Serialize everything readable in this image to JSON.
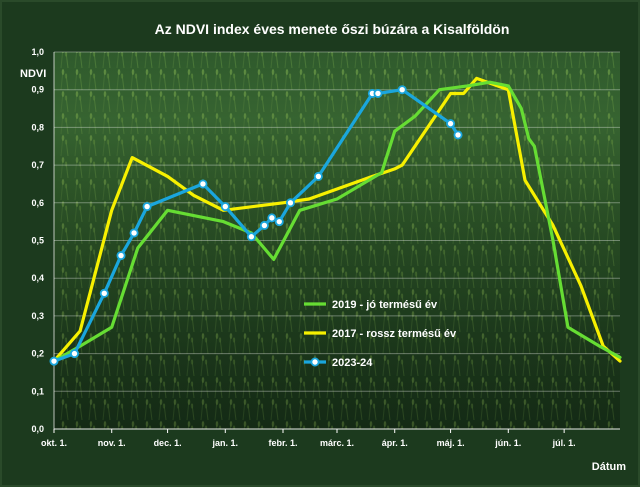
{
  "chart_data": {
    "type": "line",
    "title": "Az NDVI index éves menete őszi búzára a Kisalföldön",
    "xlabel": "Dátum",
    "ylabel": "NDVI",
    "ylim": [
      0,
      1
    ],
    "yticks": [
      "0,0",
      "0,1",
      "0,2",
      "0,3",
      "0,4",
      "0,5",
      "0,6",
      "0,7",
      "0,8",
      "0,9",
      "1,0"
    ],
    "xlim": [
      "2023-10-01",
      "2024-07-31"
    ],
    "xticks": [
      {
        "date": "2023-10-01",
        "label": "okt. 1."
      },
      {
        "date": "2023-11-01",
        "label": "nov. 1."
      },
      {
        "date": "2023-12-01",
        "label": "dec. 1."
      },
      {
        "date": "2024-01-01",
        "label": "jan. 1."
      },
      {
        "date": "2024-02-01",
        "label": "febr. 1."
      },
      {
        "date": "2024-03-01",
        "label": "márc. 1."
      },
      {
        "date": "2024-04-01",
        "label": "ápr. 1."
      },
      {
        "date": "2024-05-01",
        "label": "máj. 1."
      },
      {
        "date": "2024-06-01",
        "label": "jún. 1."
      },
      {
        "date": "2024-07-01",
        "label": "júl. 1."
      }
    ],
    "grid": "horizontal",
    "legend_position": "center-right",
    "series": [
      {
        "name": "2019 - jó termésű év",
        "color": "#66dd33",
        "marker": "none",
        "points": [
          [
            "2023-10-01",
            0.18
          ],
          [
            "2023-10-15",
            0.22
          ],
          [
            "2023-11-01",
            0.27
          ],
          [
            "2023-11-15",
            0.48
          ],
          [
            "2023-12-01",
            0.58
          ],
          [
            "2023-12-31",
            0.55
          ],
          [
            "2024-01-15",
            0.52
          ],
          [
            "2024-01-27",
            0.45
          ],
          [
            "2024-02-10",
            0.58
          ],
          [
            "2024-03-01",
            0.61
          ],
          [
            "2024-03-25",
            0.68
          ],
          [
            "2024-04-01",
            0.79
          ],
          [
            "2024-04-12",
            0.83
          ],
          [
            "2024-04-25",
            0.9
          ],
          [
            "2024-05-10",
            0.91
          ],
          [
            "2024-05-22",
            0.92
          ],
          [
            "2024-06-01",
            0.91
          ],
          [
            "2024-06-08",
            0.85
          ],
          [
            "2024-06-12",
            0.77
          ],
          [
            "2024-06-15",
            0.75
          ],
          [
            "2024-06-25",
            0.5
          ],
          [
            "2024-07-03",
            0.27
          ],
          [
            "2024-07-20",
            0.22
          ],
          [
            "2024-07-31",
            0.19
          ]
        ]
      },
      {
        "name": "2017 - rossz termésű év",
        "color": "#f7f000",
        "marker": "none",
        "points": [
          [
            "2023-10-01",
            0.18
          ],
          [
            "2023-10-15",
            0.26
          ],
          [
            "2023-11-01",
            0.58
          ],
          [
            "2023-11-12",
            0.72
          ],
          [
            "2023-12-01",
            0.67
          ],
          [
            "2023-12-15",
            0.62
          ],
          [
            "2023-12-31",
            0.58
          ],
          [
            "2024-02-01",
            0.6
          ],
          [
            "2024-02-15",
            0.61
          ],
          [
            "2024-03-20",
            0.67
          ],
          [
            "2024-04-01",
            0.69
          ],
          [
            "2024-04-05",
            0.7
          ],
          [
            "2024-05-01",
            0.89
          ],
          [
            "2024-05-08",
            0.89
          ],
          [
            "2024-05-15",
            0.93
          ],
          [
            "2024-06-01",
            0.9
          ],
          [
            "2024-06-10",
            0.66
          ],
          [
            "2024-06-25",
            0.54
          ],
          [
            "2024-07-10",
            0.38
          ],
          [
            "2024-07-22",
            0.22
          ],
          [
            "2024-07-31",
            0.18
          ]
        ]
      },
      {
        "name": "2023-24",
        "color": "#1aa6dd",
        "marker": "circle",
        "points": [
          [
            "2023-10-01",
            0.18
          ],
          [
            "2023-10-12",
            0.2
          ],
          [
            "2023-10-28",
            0.36
          ],
          [
            "2023-11-06",
            0.46
          ],
          [
            "2023-11-13",
            0.52
          ],
          [
            "2023-11-20",
            0.59
          ],
          [
            "2023-12-20",
            0.65
          ],
          [
            "2024-01-01",
            0.59
          ],
          [
            "2024-01-15",
            0.51
          ],
          [
            "2024-01-22",
            0.54
          ],
          [
            "2024-01-26",
            0.56
          ],
          [
            "2024-01-30",
            0.55
          ],
          [
            "2024-02-05",
            0.6
          ],
          [
            "2024-02-20",
            0.67
          ],
          [
            "2024-03-20",
            0.89
          ],
          [
            "2024-03-23",
            0.89
          ],
          [
            "2024-04-05",
            0.9
          ],
          [
            "2024-05-01",
            0.81
          ],
          [
            "2024-05-05",
            0.78
          ]
        ]
      }
    ]
  }
}
